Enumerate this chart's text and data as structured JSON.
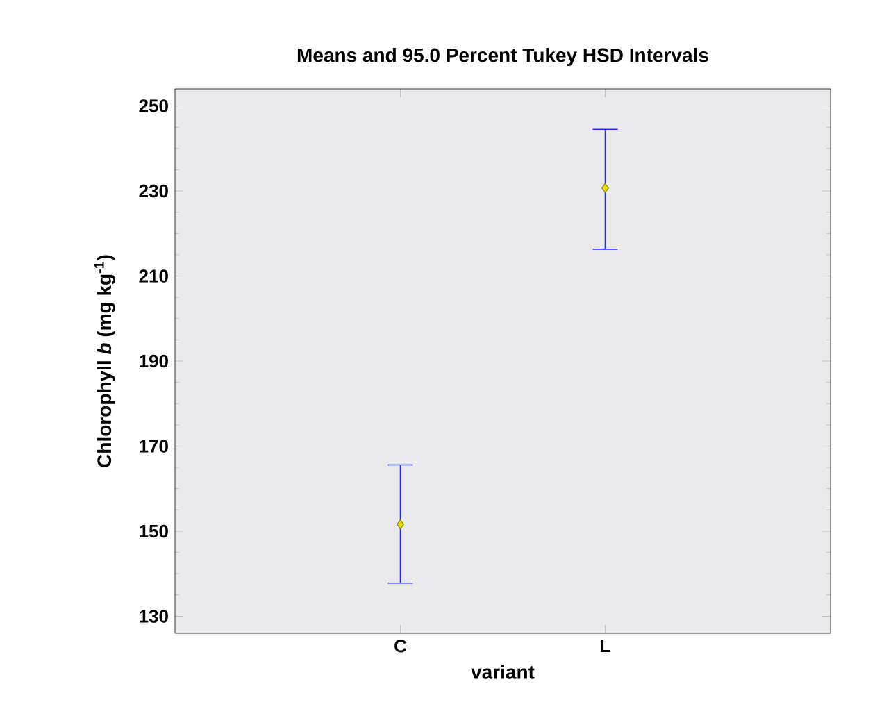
{
  "chart_data": {
    "type": "scatter",
    "title": "Means and 95.0 Percent Tukey HSD Intervals",
    "xlabel": "variant",
    "ylabel": "Chlorophyll *b* (mg kg$^{-1}$)",
    "categories": [
      "C",
      "L"
    ],
    "series": [
      {
        "color": "#e8dc00",
        "values": [
          151.6,
          230.7
        ],
        "errors": [
          [
            137.8,
            165.6
          ],
          [
            216.3,
            244.5
          ]
        ]
      }
    ],
    "marker": "diamond",
    "ylim": [
      126,
      254
    ],
    "yticks": [
      130,
      150,
      170,
      190,
      210,
      230,
      250
    ],
    "grid": false
  }
}
